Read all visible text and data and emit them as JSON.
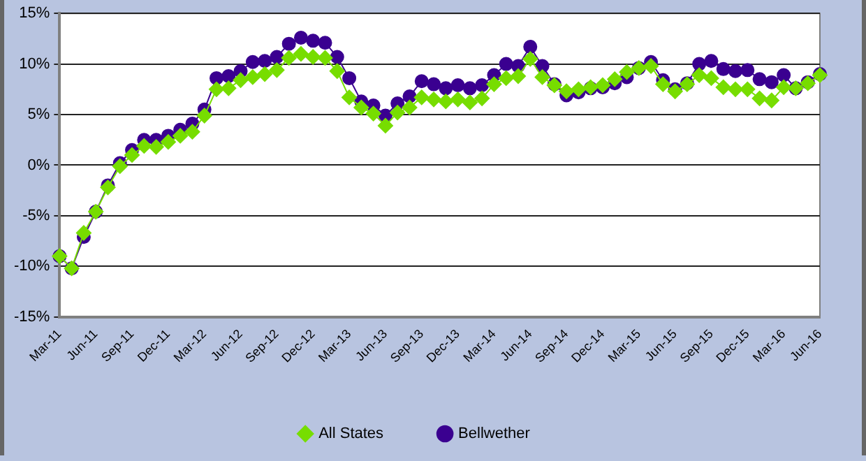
{
  "chart_data": {
    "type": "line",
    "categories": [
      "Mar-11",
      null,
      null,
      "Jun-11",
      null,
      null,
      "Sep-11",
      null,
      null,
      "Dec-11",
      null,
      null,
      "Mar-12",
      null,
      null,
      "Jun-12",
      null,
      null,
      "Sep-12",
      null,
      null,
      "Dec-12",
      null,
      null,
      "Mar-13",
      null,
      null,
      "Jun-13",
      null,
      null,
      "Sep-13",
      null,
      null,
      "Dec-13",
      null,
      null,
      "Mar-14",
      null,
      null,
      "Jun-14",
      null,
      null,
      "Sep-14",
      null,
      null,
      "Dec-14",
      null,
      null,
      "Mar-15",
      null,
      null,
      "Jun-15",
      null,
      null,
      "Sep-15",
      null,
      null,
      "Dec-15",
      null,
      null,
      "Mar-16",
      null,
      null,
      "Jun-16"
    ],
    "series": [
      {
        "name": "All States",
        "color": "#77dd00",
        "marker": "diamond",
        "values": [
          -9.0,
          -10.2,
          -6.7,
          -4.6,
          -2.2,
          -0.1,
          1.0,
          1.9,
          1.8,
          2.3,
          2.9,
          3.3,
          4.9,
          7.5,
          7.6,
          8.4,
          8.7,
          9.0,
          9.4,
          10.6,
          11.0,
          10.7,
          10.6,
          9.3,
          6.7,
          5.7,
          5.1,
          3.9,
          5.2,
          5.7,
          6.7,
          6.5,
          6.3,
          6.5,
          6.2,
          6.6,
          8.0,
          8.6,
          8.8,
          10.5,
          8.7,
          7.9,
          7.3,
          7.5,
          7.7,
          7.9,
          8.5,
          9.2,
          9.6,
          9.8,
          8.0,
          7.3,
          8.0,
          8.9,
          8.6,
          7.7,
          7.5,
          7.5,
          6.6,
          6.4,
          7.7,
          7.6,
          8.1,
          8.9
        ]
      },
      {
        "name": "Bellwether",
        "color": "#3a0090",
        "marker": "circle",
        "values": [
          -9.0,
          -10.2,
          -7.1,
          -4.6,
          -2.0,
          0.2,
          1.5,
          2.5,
          2.5,
          2.9,
          3.5,
          4.1,
          5.5,
          8.6,
          8.8,
          9.3,
          10.2,
          10.3,
          10.7,
          12.0,
          12.6,
          12.3,
          12.1,
          10.7,
          8.6,
          6.3,
          5.9,
          4.9,
          6.1,
          6.8,
          8.3,
          8.0,
          7.6,
          7.9,
          7.6,
          7.9,
          8.9,
          10.0,
          9.8,
          11.7,
          9.8,
          8.0,
          6.9,
          7.2,
          7.6,
          7.7,
          8.1,
          8.7,
          9.6,
          10.2,
          8.4,
          7.5,
          8.1,
          10.0,
          10.3,
          9.5,
          9.3,
          9.4,
          8.5,
          8.2,
          8.9,
          7.6,
          8.2,
          9.0
        ]
      }
    ],
    "ylim": [
      -15,
      15
    ],
    "yticks": [
      {
        "value": -15,
        "label": "-15%"
      },
      {
        "value": -10,
        "label": "-10%"
      },
      {
        "value": -5,
        "label": "-5%"
      },
      {
        "value": 0,
        "label": "0%"
      },
      {
        "value": 5,
        "label": "5%"
      },
      {
        "value": 10,
        "label": "10%"
      },
      {
        "value": 15,
        "label": "15%"
      }
    ],
    "grid": "y",
    "legend": "bottom",
    "line_style": "solid"
  }
}
